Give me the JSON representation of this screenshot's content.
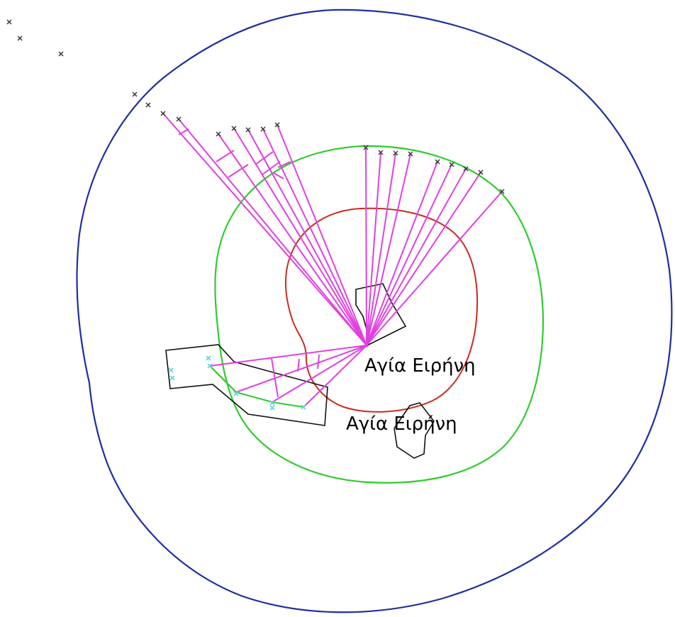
{
  "labels": {
    "settlement_primary": "Αγία Ειρήνη",
    "settlement_secondary": "Αγία Ειρήνη"
  },
  "colors": {
    "outer_boundary": "#1f2ea0",
    "middle_boundary": "#2ecc2e",
    "inner_boundary": "#cc2a1e",
    "connection_lines": "#e040e0",
    "settlement_outline": "#111111",
    "site_markers": "#333333",
    "site_markers_cyan": "#5fd3e0",
    "secondary_links": "#2ecc2e"
  },
  "icons": {
    "site_marker": "x-marker-icon",
    "cyan_site_marker": "cyan-marker-icon"
  }
}
